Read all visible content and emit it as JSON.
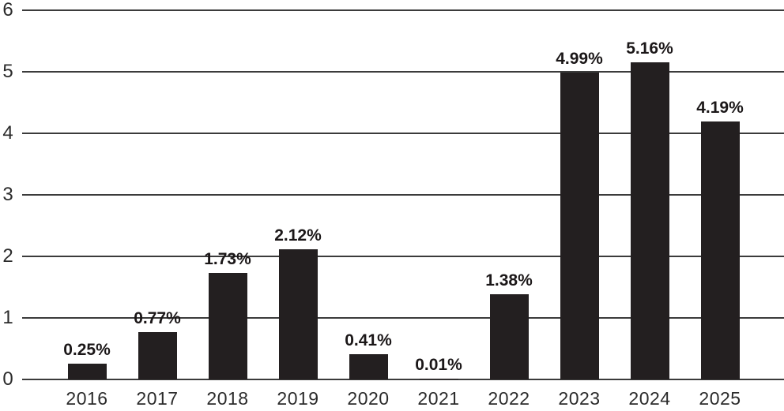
{
  "chart_data": {
    "type": "bar",
    "title": "",
    "xlabel": "",
    "ylabel": "",
    "categories": [
      "2016",
      "2017",
      "2018",
      "2019",
      "2020",
      "2021",
      "2022",
      "2023",
      "2024",
      "2025"
    ],
    "values": [
      0.25,
      0.77,
      1.73,
      2.12,
      0.41,
      0.01,
      1.38,
      4.99,
      5.16,
      4.19
    ],
    "bar_labels": [
      "0.25%",
      "0.77%",
      "1.73%",
      "2.12%",
      "0.41%",
      "0.01%",
      "1.38%",
      "4.99%",
      "5.16%",
      "4.19%"
    ],
    "yticks": [
      "0",
      "1",
      "2",
      "3",
      "4",
      "5",
      "6"
    ],
    "ylim": [
      0,
      6
    ],
    "grid": true,
    "legend": "none",
    "colors": {
      "bar": "#231f20",
      "gridline": "#3b3b3b",
      "axis_text": "#2b2b2b",
      "value_label_text": "#1b1718",
      "background": "#ffffff"
    }
  }
}
